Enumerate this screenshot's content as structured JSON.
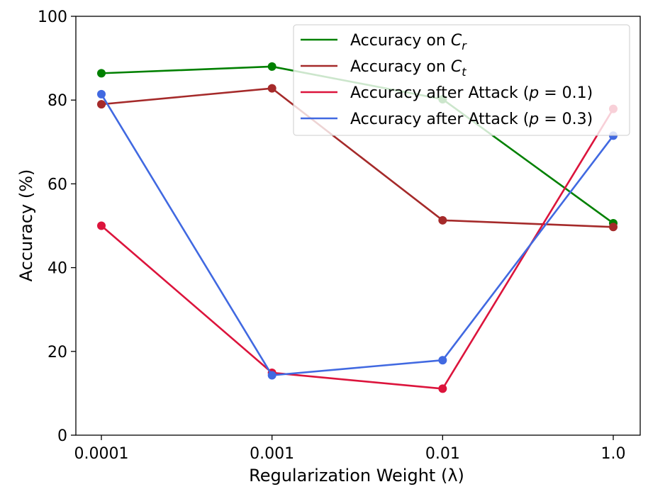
{
  "chart_data": {
    "type": "line",
    "title": "",
    "xlabel": "Regularization Weight (λ)",
    "ylabel": "Accuracy (%)",
    "categories": [
      "0.0001",
      "0.001",
      "0.01",
      "1.0"
    ],
    "ylim": [
      0,
      100
    ],
    "yticks": [
      0,
      20,
      40,
      60,
      80,
      100
    ],
    "grid": false,
    "legend_position": "top-right",
    "series": [
      {
        "name": "Accuracy on C_r",
        "legend": {
          "pre": "Accuracy on ",
          "var": "C",
          "sub": "r",
          "post": ""
        },
        "color": "#008000",
        "values": [
          86.4,
          88.0,
          80.2,
          50.6
        ]
      },
      {
        "name": "Accuracy on C_t",
        "legend": {
          "pre": "Accuracy on ",
          "var": "C",
          "sub": "t",
          "post": ""
        },
        "color": "#a52a2a",
        "values": [
          79.0,
          82.8,
          51.3,
          49.7
        ]
      },
      {
        "name": "Accuracy after Attack (p = 0.1)",
        "legend": {
          "pre": "Accuracy after Attack (",
          "var": "p",
          "sub": "",
          "post": " = 0.1)"
        },
        "color": "#dc143c",
        "values": [
          50.0,
          14.9,
          11.1,
          77.9
        ]
      },
      {
        "name": "Accuracy after Attack (p = 0.3)",
        "legend": {
          "pre": "Accuracy after Attack (",
          "var": "p",
          "sub": "",
          "post": " = 0.3)"
        },
        "color": "#4169e1",
        "values": [
          81.4,
          14.3,
          17.9,
          71.5
        ]
      }
    ]
  }
}
